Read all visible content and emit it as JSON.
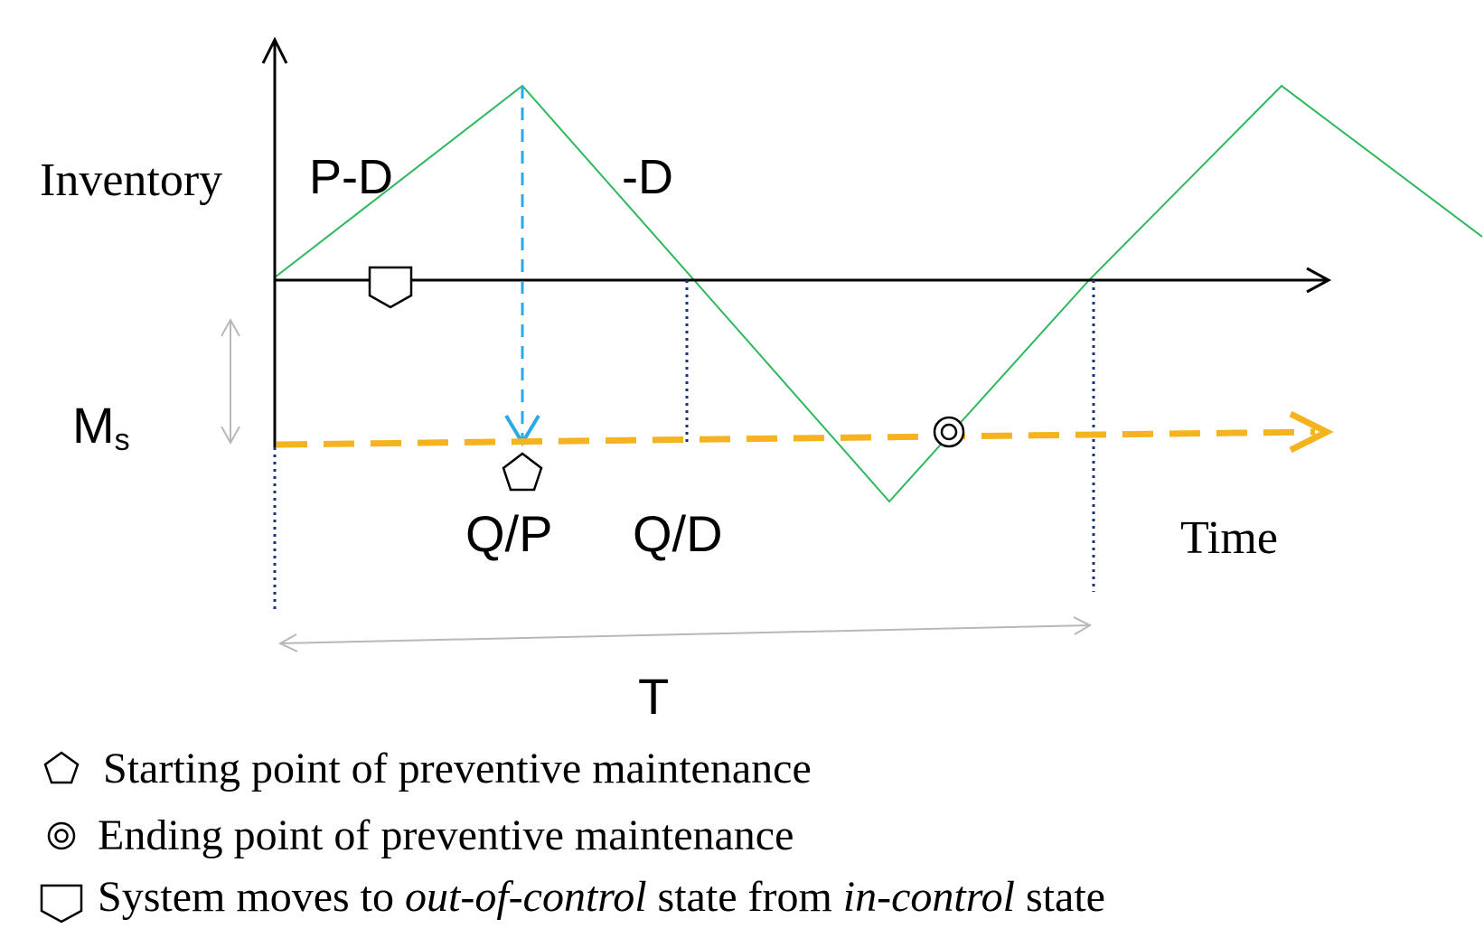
{
  "labels": {
    "y_axis": "Inventory",
    "slope_up": "P-D",
    "slope_down": "-D",
    "ms_main": "M",
    "ms_sub": "s",
    "qp": "Q/P",
    "qd": "Q/D",
    "x_axis": "Time",
    "period": "T"
  },
  "legend": {
    "start": "Starting point of preventive maintenance",
    "end": "Ending point of preventive maintenance",
    "sys_part1": "System moves to ",
    "sys_italic1": "out-of-control",
    "sys_part2": " state from ",
    "sys_italic2": "in-control",
    "sys_part3": " state"
  },
  "colors": {
    "inventory_line": "#2eb85c",
    "maintenance_line": "#f5b320",
    "pm_arrow": "#2aa8e8",
    "guide": "#1f2f80",
    "range_arrow": "#b8b8b8",
    "axis": "#000000"
  },
  "icons": {
    "start": "pentagon-icon",
    "end": "double-circle-icon",
    "system": "shield-icon"
  }
}
